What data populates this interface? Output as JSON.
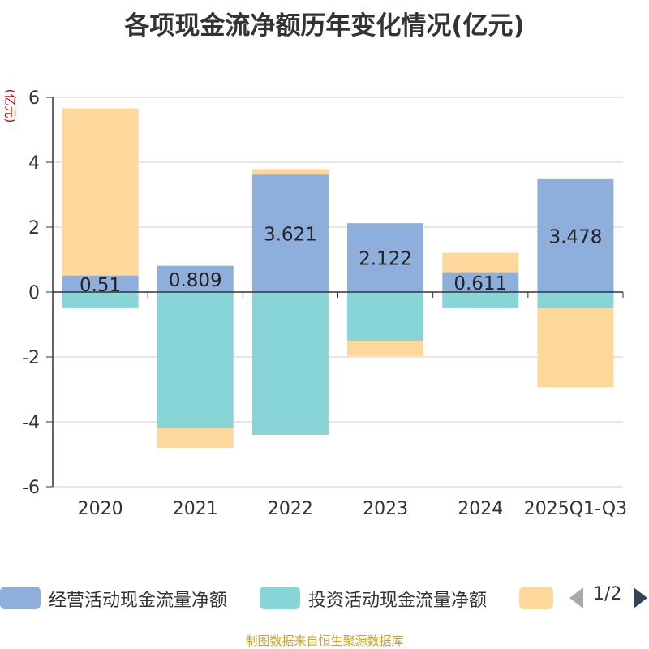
{
  "chart_data": {
    "type": "bar",
    "stacked": true,
    "title": "各项现金流净额历年变化情况(亿元)",
    "ylabel": "(亿元)",
    "ylim": [
      -6,
      6
    ],
    "yticks": [
      6,
      4,
      2,
      0,
      -2,
      -4,
      -6
    ],
    "categories": [
      "2020",
      "2021",
      "2022",
      "2023",
      "2024",
      "2025Q1-Q3"
    ],
    "series": [
      {
        "name": "经营活动现金流量净额",
        "color": "#8eaedb",
        "values": [
          0.51,
          0.809,
          3.621,
          2.122,
          0.611,
          3.478
        ],
        "labels": [
          "0.51",
          "0.809",
          "3.621",
          "2.122",
          "0.611",
          "3.478"
        ]
      },
      {
        "name": "投资活动现金流量净额",
        "color": "#87d5d7",
        "values": [
          -0.5,
          -4.2,
          -4.4,
          -1.5,
          -0.5,
          -0.5
        ]
      },
      {
        "name": "",
        "color": "#fdd89a",
        "values": [
          5.15,
          -0.6,
          0.17,
          -0.47,
          0.6,
          -2.43
        ]
      }
    ],
    "grid": true,
    "legend_position": "bottom"
  },
  "legend": {
    "page": "1/2"
  },
  "source": "制图数据来自恒生聚源数据库"
}
